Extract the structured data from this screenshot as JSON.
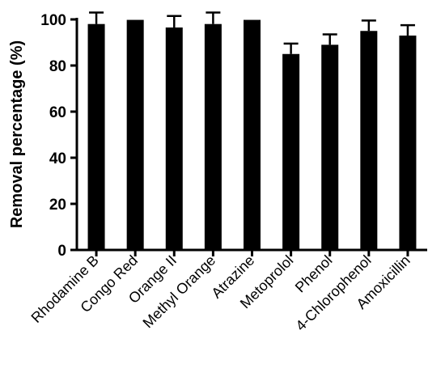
{
  "chart_data": {
    "type": "bar",
    "title": "",
    "xlabel": "",
    "ylabel": "Removal percentage (%)",
    "ylim": [
      0,
      100
    ],
    "yticks": [
      0,
      20,
      40,
      60,
      80,
      100
    ],
    "grid": false,
    "legend": "none",
    "bar_color": "#000000",
    "categories": [
      "Rhodamine B",
      "Congo Red",
      "Orange II",
      "Methyl Orange",
      "Atrazine",
      "Metoprolol",
      "Phenol",
      "4-Chlorophenol",
      "Amoxicillin"
    ],
    "values": [
      98,
      99.8,
      96.5,
      98,
      99.8,
      85,
      89,
      95,
      93
    ],
    "errors": [
      5,
      0,
      5,
      5,
      0,
      4.5,
      4.5,
      4.5,
      4.5
    ]
  }
}
